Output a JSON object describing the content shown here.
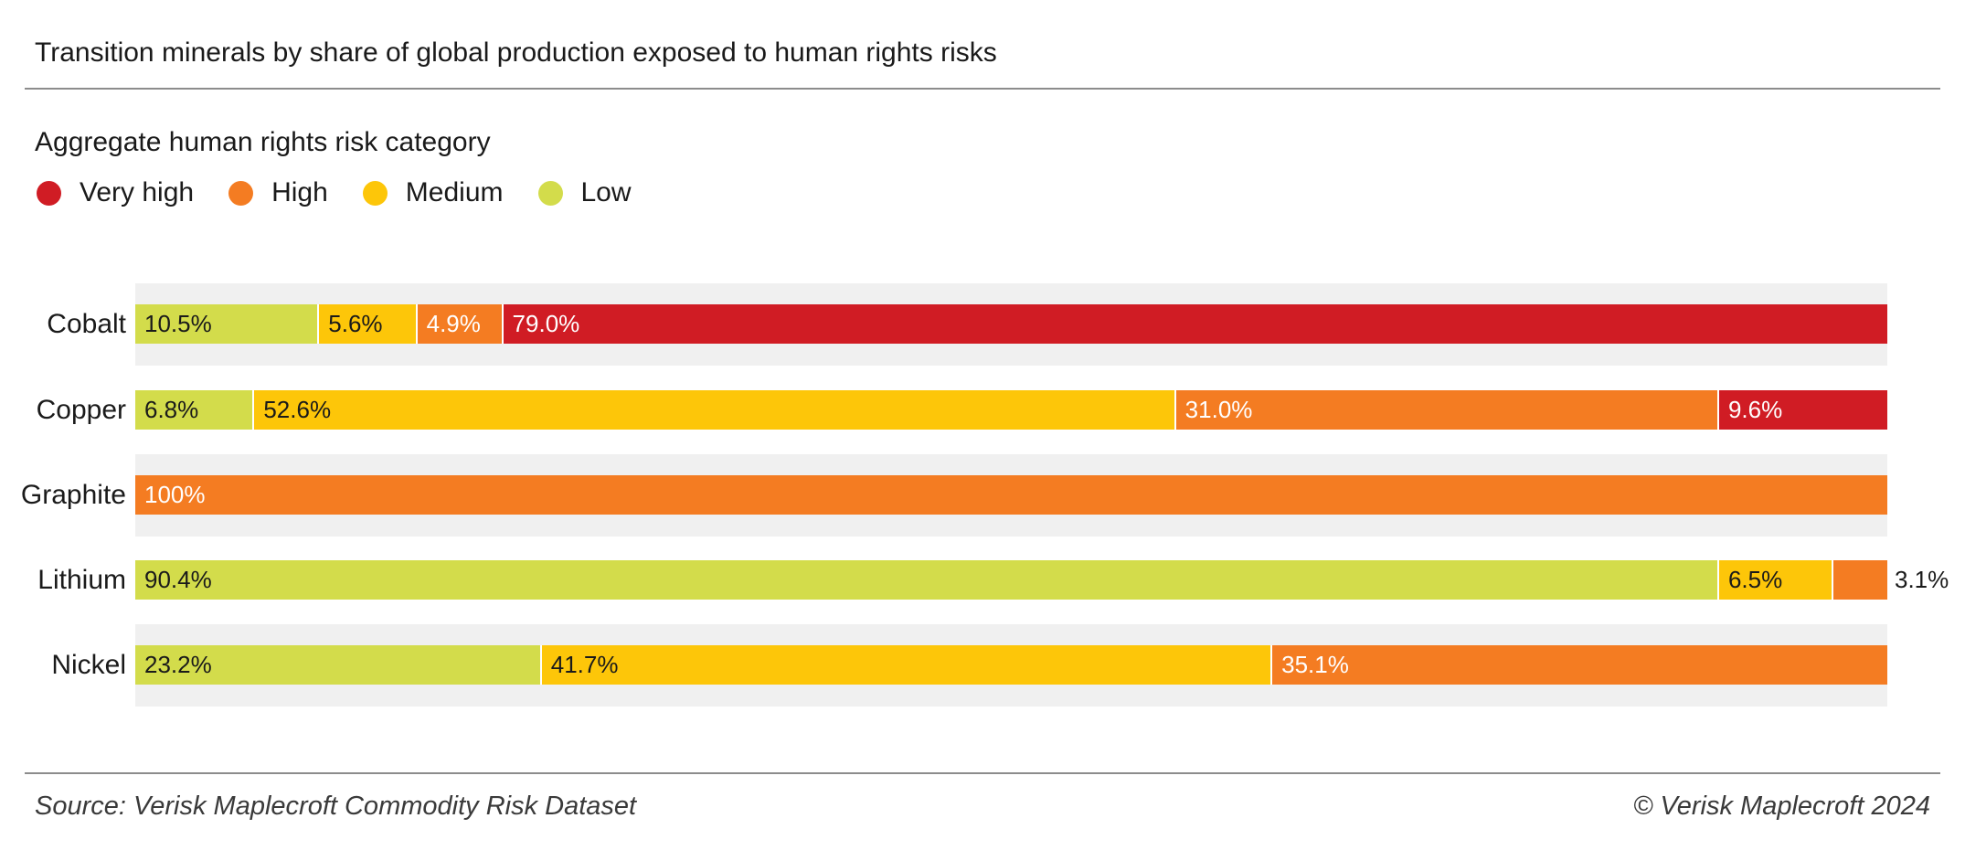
{
  "title": "Transition minerals by share of global production exposed to human rights risks",
  "legend": {
    "heading": "Aggregate human rights risk category",
    "items": [
      {
        "key": "very_high",
        "label": "Very high",
        "color": "#d01c24",
        "text_color": "#ffffff"
      },
      {
        "key": "high",
        "label": "High",
        "color": "#f47c22",
        "text_color": "#ffffff"
      },
      {
        "key": "medium",
        "label": "Medium",
        "color": "#fdc609",
        "text_color": "#1a1a1a"
      },
      {
        "key": "low",
        "label": "Low",
        "color": "#d3dc4b",
        "text_color": "#1a1a1a"
      }
    ]
  },
  "footer": {
    "source": "Source: Verisk Maplecroft Commodity Risk Dataset",
    "copyright": "© Verisk Maplecroft 2024"
  },
  "colors": {
    "row_stripe": "#f0f0f0",
    "separator": "#8c8c8c",
    "background": "#ffffff"
  },
  "chart_data": {
    "type": "bar",
    "orientation": "horizontal",
    "stacked": true,
    "unit": "%",
    "xlim": [
      0,
      100
    ],
    "axis_visible": false,
    "grid": false,
    "legend_position": "top",
    "title": "Transition minerals by share of global production exposed to human rights risks",
    "legend_title": "Aggregate human rights risk category",
    "legend_entries": [
      "Very high",
      "High",
      "Medium",
      "Low"
    ],
    "categories": [
      "Cobalt",
      "Copper",
      "Graphite",
      "Lithium",
      "Nickel"
    ],
    "series_order": [
      "low",
      "medium",
      "high",
      "very_high"
    ],
    "striped_rows": [
      0,
      2,
      4
    ],
    "rows": [
      {
        "mineral": "Cobalt",
        "segments": [
          {
            "category": "low",
            "value": 10.5,
            "label": "10.5%"
          },
          {
            "category": "medium",
            "value": 5.6,
            "label": "5.6%"
          },
          {
            "category": "high",
            "value": 4.9,
            "label": "4.9%"
          },
          {
            "category": "very_high",
            "value": 79.0,
            "label": "79.0%"
          }
        ]
      },
      {
        "mineral": "Copper",
        "segments": [
          {
            "category": "low",
            "value": 6.8,
            "label": "6.8%"
          },
          {
            "category": "medium",
            "value": 52.6,
            "label": "52.6%"
          },
          {
            "category": "high",
            "value": 31.0,
            "label": "31.0%"
          },
          {
            "category": "very_high",
            "value": 9.6,
            "label": "9.6%"
          }
        ]
      },
      {
        "mineral": "Graphite",
        "segments": [
          {
            "category": "high",
            "value": 100,
            "label": "100%"
          }
        ]
      },
      {
        "mineral": "Lithium",
        "segments": [
          {
            "category": "low",
            "value": 90.4,
            "label": "90.4%"
          },
          {
            "category": "medium",
            "value": 6.5,
            "label": "6.5%"
          },
          {
            "category": "high",
            "value": 3.1,
            "label": "3.1%",
            "label_outside": true
          }
        ]
      },
      {
        "mineral": "Nickel",
        "segments": [
          {
            "category": "low",
            "value": 23.2,
            "label": "23.2%"
          },
          {
            "category": "medium",
            "value": 41.7,
            "label": "41.7%"
          },
          {
            "category": "high",
            "value": 35.1,
            "label": "35.1%"
          }
        ]
      }
    ],
    "source": "Source: Verisk Maplecroft Commodity Risk Dataset",
    "copyright": "© Verisk Maplecroft 2024"
  }
}
